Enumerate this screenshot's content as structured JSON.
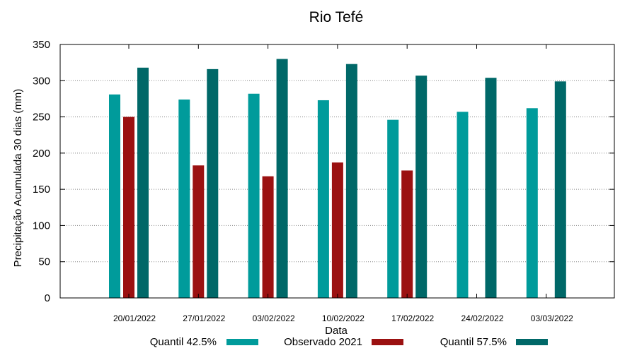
{
  "chart_data": {
    "type": "bar",
    "title": "Rio Tefé",
    "xlabel": "Data",
    "ylabel": "Precipitação Acumulada 30 dias (mm)",
    "ylim": [
      0,
      350
    ],
    "yticks": [
      0,
      50,
      100,
      150,
      200,
      250,
      300,
      350
    ],
    "grid": true,
    "legend_position": "bottom",
    "categories": [
      "20/01/2022",
      "27/01/2022",
      "03/02/2022",
      "10/02/2022",
      "17/02/2022",
      "24/02/2022",
      "03/03/2022"
    ],
    "series": [
      {
        "name": "Quantil 42.5%",
        "color": "#009b9b",
        "values": [
          281,
          274,
          282,
          273,
          246,
          257,
          262
        ]
      },
      {
        "name": "Observado 2021",
        "color": "#9b1111",
        "values": [
          250,
          183,
          168,
          187,
          176,
          null,
          null
        ]
      },
      {
        "name": "Quantil 57.5%",
        "color": "#006868",
        "values": [
          318,
          316,
          330,
          323,
          307,
          304,
          299
        ]
      }
    ]
  }
}
